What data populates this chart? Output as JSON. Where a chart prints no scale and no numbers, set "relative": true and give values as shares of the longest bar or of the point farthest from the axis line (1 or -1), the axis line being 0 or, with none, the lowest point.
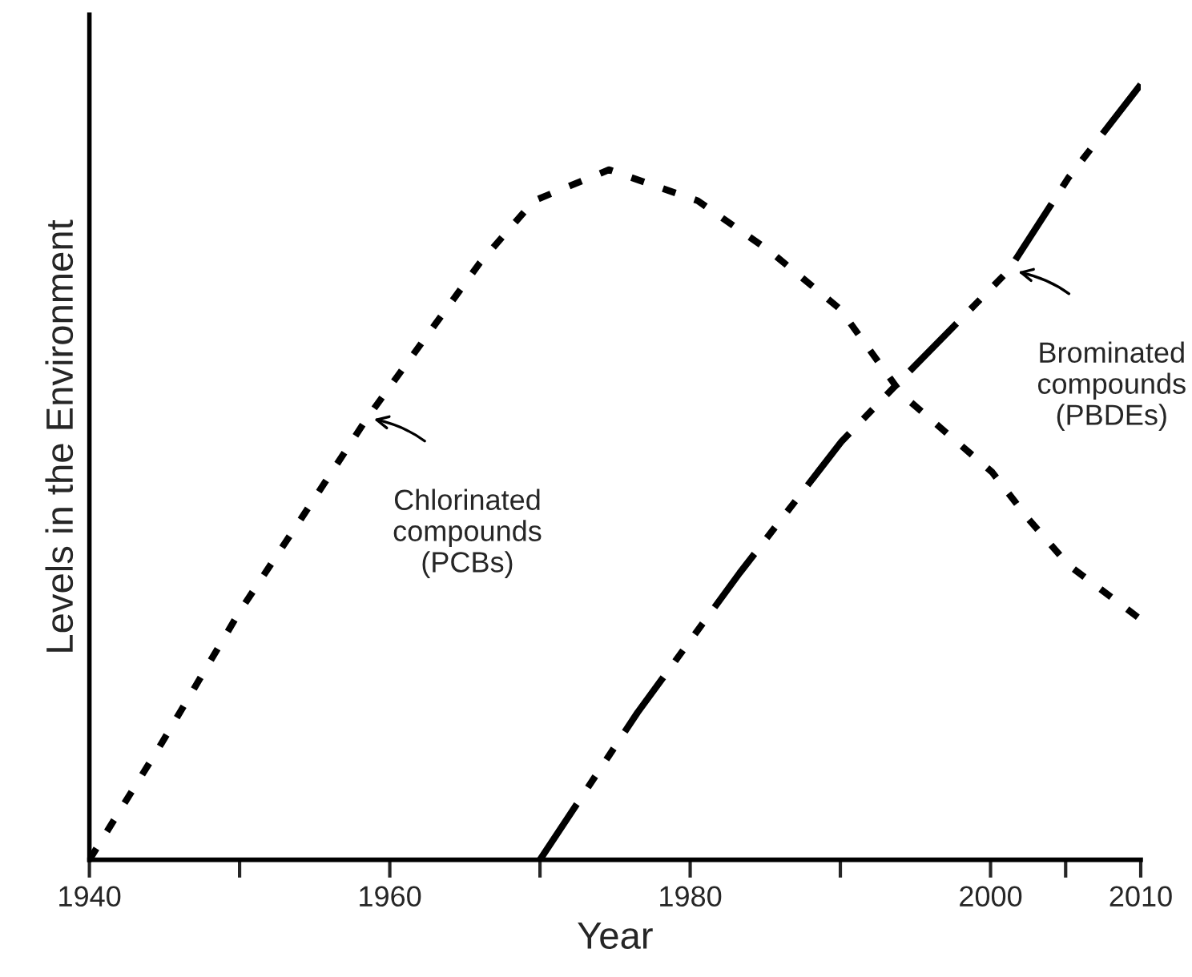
{
  "chart_data": {
    "type": "line",
    "relative": true,
    "xlabel": "Year",
    "ylabel": "Levels in the Environment",
    "xlim": [
      1940,
      2010
    ],
    "xticks": [
      1940,
      {
        "value": 1950,
        "label": null
      },
      1960,
      {
        "value": 1970,
        "label": null
      },
      1980,
      {
        "value": 1990,
        "label": null
      },
      2000,
      {
        "value": 2005,
        "label": null
      },
      2010
    ],
    "legend": false,
    "grid": false,
    "series": [
      {
        "color": "#000000",
        "line_style": "dotted",
        "x": [
          1940,
          1944.8,
          1950,
          1954.1,
          1958.5,
          1963,
          1966,
          1969.6,
          1974.6,
          1980.5,
          1985.3,
          1990,
          1994.1,
          2000.1,
          2002.5,
          2005.2,
          2010
        ],
        "values": [
          0,
          0.15,
          0.32,
          0.44,
          0.57,
          0.69,
          0.77,
          0.85,
          0.89,
          0.85,
          0.785,
          0.71,
          0.6,
          0.5,
          0.44,
          0.38,
          0.31
        ]
      },
      {
        "color": "#000000",
        "line_style": "dashdotdot",
        "x": [
          1970,
          1976.5,
          1983.3,
          1990.1,
          1994.1,
          2001.2,
          2005.2,
          2010
        ],
        "values": [
          0,
          0.19,
          0.37,
          0.54,
          0.62,
          0.76,
          0.88,
          1.0
        ]
      }
    ],
    "annotations": [
      {
        "text": "Chlorinated\ncompounds\n(PCBs)",
        "x": 1958.5,
        "y": 0.57
      },
      {
        "text": "Brominated\ncompounds\n(PBDEs)",
        "x": 2001.4,
        "y": 0.76
      }
    ]
  }
}
